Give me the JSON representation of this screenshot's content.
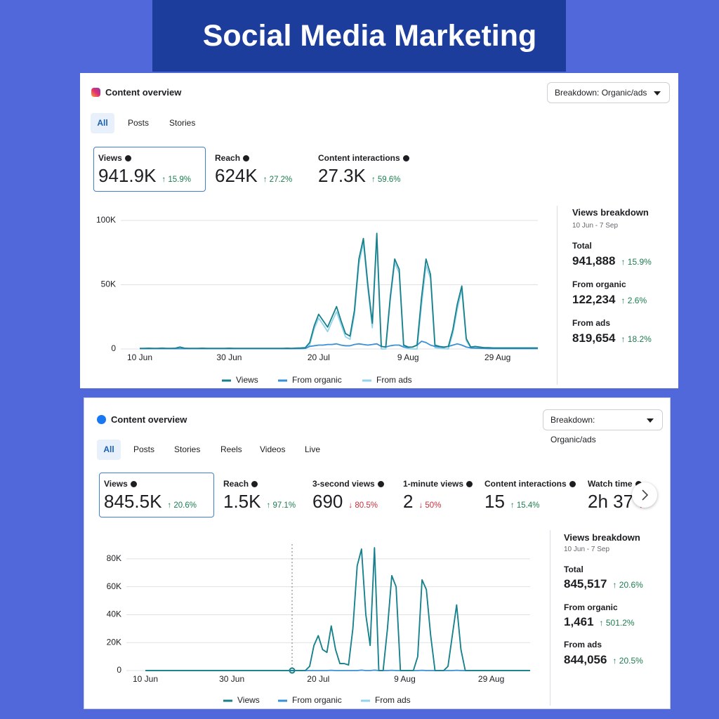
{
  "title": "Social Media Marketing",
  "panels": [
    {
      "header": "Content overview",
      "dropdown": "Breakdown: Organic/ads",
      "tabs": [
        "All",
        "Posts",
        "Stories"
      ],
      "metrics": [
        {
          "label": "Views",
          "value": "941.9K",
          "change": "↑ 15.9%"
        },
        {
          "label": "Reach",
          "value": "624K",
          "change": "↑ 27.2%"
        },
        {
          "label": "Content interactions",
          "value": "27.3K",
          "change": "↑ 59.6%"
        }
      ],
      "breakdown": {
        "title": "Views breakdown",
        "range": "10 Jun - 7 Sep",
        "rows": [
          {
            "label": "Total",
            "value": "941,888",
            "change": "↑ 15.9%"
          },
          {
            "label": "From organic",
            "value": "122,234",
            "change": "↑ 2.6%"
          },
          {
            "label": "From ads",
            "value": "819,654",
            "change": "↑ 18.2%"
          }
        ]
      },
      "chart": {
        "type": "line",
        "categories": [
          "10 Jun",
          null,
          null,
          null,
          null,
          null,
          null,
          null,
          null,
          null,
          null,
          null,
          null,
          null,
          null,
          null,
          null,
          null,
          null,
          null,
          "30 Jun",
          null,
          null,
          null,
          null,
          null,
          null,
          null,
          null,
          null,
          null,
          null,
          null,
          null,
          null,
          null,
          null,
          null,
          null,
          null,
          "20 Jul",
          null,
          null,
          null,
          null,
          null,
          null,
          null,
          null,
          null,
          null,
          null,
          null,
          null,
          null,
          null,
          null,
          null,
          null,
          null,
          "9 Aug",
          null,
          null,
          null,
          null,
          null,
          null,
          null,
          null,
          null,
          null,
          null,
          null,
          null,
          null,
          null,
          null,
          null,
          null,
          null,
          "29 Aug",
          null,
          null,
          null,
          null,
          null,
          null,
          null,
          null,
          null
        ],
        "series": [
          {
            "name": "Views",
            "color": "#17808a",
            "values": [
              500,
              500,
              600,
              500,
              500,
              700,
              500,
              500,
              600,
              1500,
              600,
              500,
              500,
              500,
              600,
              500,
              500,
              500,
              500,
              500,
              600,
              500,
              500,
              500,
              500,
              500,
              500,
              500,
              500,
              500,
              500,
              500,
              500,
              600,
              500,
              700,
              800,
              1000,
              5000,
              18000,
              27000,
              22000,
              17000,
              25000,
              33000,
              22000,
              12000,
              10000,
              30000,
              70000,
              86000,
              50000,
              20000,
              90000,
              2000,
              1500,
              40000,
              70000,
              62000,
              3000,
              1500,
              1500,
              3000,
              40000,
              70000,
              58000,
              3000,
              2000,
              1500,
              2000,
              15000,
              35000,
              49000,
              8000,
              1500,
              2000,
              1500,
              1000,
              1000,
              800,
              800,
              800,
              800,
              800,
              800,
              800,
              800,
              800,
              800,
              800
            ]
          },
          {
            "name": "From organic",
            "color": "#3b8fd4",
            "values": [
              200,
              200,
              200,
              200,
              200,
              200,
              200,
              200,
              200,
              200,
              200,
              200,
              200,
              200,
              200,
              200,
              200,
              200,
              200,
              200,
              200,
              200,
              200,
              200,
              200,
              200,
              200,
              200,
              200,
              200,
              200,
              200,
              200,
              200,
              200,
              300,
              300,
              400,
              2000,
              2500,
              3000,
              3000,
              3500,
              3500,
              4000,
              3000,
              2500,
              2500,
              3500,
              4000,
              3500,
              3000,
              3500,
              4000,
              2000,
              1500,
              2500,
              3000,
              3000,
              1500,
              1200,
              1500,
              3000,
              6000,
              5000,
              3000,
              2000,
              1500,
              1200,
              2000,
              3000,
              4000,
              3000,
              1500,
              800,
              600,
              500,
              400,
              300,
              300,
              300,
              300,
              300,
              300,
              300,
              300,
              300,
              300,
              300,
              300
            ]
          },
          {
            "name": "From ads",
            "color": "#93d4ea",
            "values": [
              300,
              300,
              400,
              300,
              300,
              500,
              300,
              300,
              400,
              1300,
              400,
              300,
              300,
              300,
              400,
              300,
              300,
              300,
              300,
              300,
              400,
              300,
              300,
              300,
              300,
              300,
              300,
              300,
              300,
              300,
              300,
              300,
              300,
              400,
              300,
              400,
              500,
              600,
              3000,
              15500,
              24000,
              19000,
              13500,
              21500,
              29000,
              19000,
              9500,
              7500,
              26500,
              66000,
              82500,
              47000,
              16500,
              86000,
              0,
              0,
              37500,
              67000,
              59000,
              1500,
              300,
              0,
              0,
              34000,
              65000,
              55000,
              1000,
              500,
              300,
              0,
              12000,
              31000,
              46000,
              6500,
              700,
              1400,
              1000,
              600,
              700,
              500,
              500,
              500,
              500,
              500,
              500,
              500,
              500,
              500,
              500,
              500
            ]
          }
        ],
        "ylim": [
          0,
          100000
        ],
        "yticks": [
          0,
          {
            "value": 50000,
            "label": "50K"
          },
          {
            "value": 100000,
            "label": "100K"
          }
        ],
        "grid": true
      }
    },
    {
      "header": "Content overview",
      "dropdown": "Breakdown: Organic/ads",
      "tabs": [
        "All",
        "Posts",
        "Stories",
        "Reels",
        "Videos",
        "Live"
      ],
      "metrics": [
        {
          "label": "Views",
          "value": "845.5K",
          "change": "↑ 20.6%"
        },
        {
          "label": "Reach",
          "value": "1.5K",
          "change": "↑ 97.1%"
        },
        {
          "label": "3-second views",
          "value": "690",
          "change": "↓ 80.5%"
        },
        {
          "label": "1-minute views",
          "value": "2",
          "change": "↓ 50%"
        },
        {
          "label": "Content interactions",
          "value": "15",
          "change": "↑ 15.4%"
        },
        {
          "label": "Watch time",
          "value": "2h 37",
          "change": "↓"
        }
      ],
      "breakdown": {
        "title": "Views breakdown",
        "range": "10 Jun - 7 Sep",
        "rows": [
          {
            "label": "Total",
            "value": "845,517",
            "change": "↑ 20.6%"
          },
          {
            "label": "From organic",
            "value": "1,461",
            "change": "↑ 501.2%"
          },
          {
            "label": "From ads",
            "value": "844,056",
            "change": "↑ 20.5%"
          }
        ]
      },
      "chart": {
        "type": "line",
        "categories": [
          "10 Jun",
          null,
          null,
          null,
          null,
          null,
          null,
          null,
          null,
          null,
          null,
          null,
          null,
          null,
          null,
          null,
          null,
          null,
          null,
          null,
          "30 Jun",
          null,
          null,
          null,
          null,
          null,
          null,
          null,
          null,
          null,
          null,
          null,
          null,
          null,
          null,
          null,
          null,
          null,
          null,
          null,
          "20 Jul",
          null,
          null,
          null,
          null,
          null,
          null,
          null,
          null,
          null,
          null,
          null,
          null,
          null,
          null,
          null,
          null,
          null,
          null,
          null,
          "9 Aug",
          null,
          null,
          null,
          null,
          null,
          null,
          null,
          null,
          null,
          null,
          null,
          null,
          null,
          null,
          null,
          null,
          null,
          null,
          null,
          "29 Aug",
          null,
          null,
          null,
          null,
          null,
          null,
          null,
          null,
          null
        ],
        "series": [
          {
            "name": "Views",
            "color": "#17808a",
            "values": [
              0,
              0,
              0,
              0,
              0,
              0,
              0,
              0,
              0,
              0,
              0,
              0,
              0,
              0,
              0,
              0,
              0,
              0,
              0,
              0,
              0,
              0,
              0,
              0,
              0,
              0,
              0,
              0,
              0,
              0,
              0,
              0,
              0,
              0,
              0,
              0,
              0,
              0,
              3000,
              18000,
              25000,
              15000,
              13000,
              32000,
              15000,
              5000,
              5000,
              4000,
              30000,
              75000,
              87000,
              40000,
              18000,
              88000,
              0,
              0,
              30000,
              68000,
              60000,
              0,
              0,
              0,
              0,
              10000,
              65000,
              58000,
              25000,
              0,
              0,
              0,
              3000,
              25000,
              47000,
              15000,
              0,
              0,
              0,
              0,
              0,
              0,
              0,
              0,
              0,
              0,
              0,
              0,
              0,
              0,
              0,
              0
            ]
          },
          {
            "name": "From organic",
            "color": "#3b8fd4",
            "values": [
              0,
              0,
              0,
              0,
              0,
              0,
              0,
              0,
              0,
              0,
              0,
              0,
              0,
              0,
              0,
              0,
              0,
              0,
              0,
              0,
              0,
              0,
              0,
              0,
              0,
              0,
              0,
              0,
              0,
              0,
              0,
              0,
              0,
              0,
              0,
              0,
              0,
              0,
              0,
              0,
              0,
              0,
              0,
              200,
              0,
              0,
              0,
              0,
              0,
              0,
              300,
              0,
              0,
              300,
              0,
              0,
              0,
              200,
              0,
              0,
              0,
              0,
              0,
              0,
              200,
              0,
              0,
              0,
              0,
              0,
              0,
              0,
              200,
              0,
              0,
              0,
              0,
              0,
              0,
              0,
              0,
              0,
              0,
              0,
              0,
              0,
              0,
              0,
              0,
              0
            ]
          },
          {
            "name": "From ads",
            "color": "#93d4ea",
            "values": [
              0,
              0,
              0,
              0,
              0,
              0,
              0,
              0,
              0,
              0,
              0,
              0,
              0,
              0,
              0,
              0,
              0,
              0,
              0,
              0,
              0,
              0,
              0,
              0,
              0,
              0,
              0,
              0,
              0,
              0,
              0,
              0,
              0,
              0,
              0,
              0,
              0,
              0,
              3000,
              18000,
              25000,
              15000,
              13000,
              31800,
              15000,
              5000,
              5000,
              4000,
              30000,
              75000,
              86700,
              40000,
              18000,
              87700,
              0,
              0,
              30000,
              67800,
              60000,
              0,
              0,
              0,
              0,
              10000,
              64800,
              58000,
              25000,
              0,
              0,
              0,
              3000,
              25000,
              46800,
              15000,
              0,
              0,
              0,
              0,
              0,
              0,
              0,
              0,
              0,
              0,
              0,
              0,
              0,
              0,
              0,
              0
            ]
          }
        ],
        "ylim": [
          0,
          90000
        ],
        "yticks": [
          0,
          {
            "value": 20000,
            "label": "20K"
          },
          {
            "value": 40000,
            "label": "40K"
          },
          {
            "value": 60000,
            "label": "60K"
          },
          {
            "value": 80000,
            "label": "80K"
          }
        ],
        "grid": true
      }
    }
  ]
}
